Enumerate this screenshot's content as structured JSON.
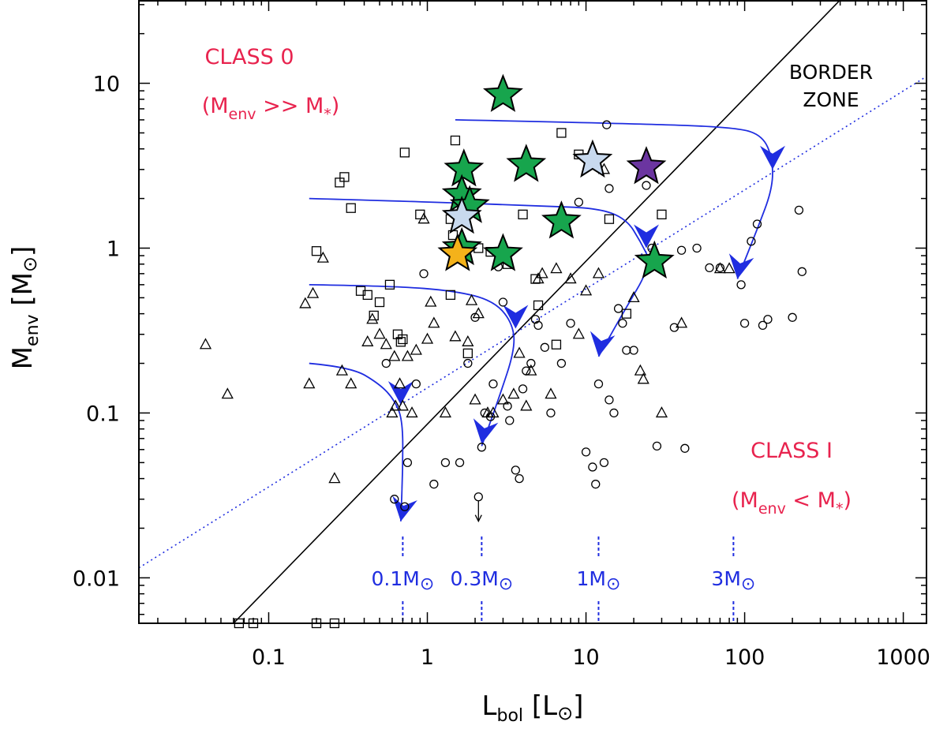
{
  "chart_data": {
    "type": "scatter",
    "xscale": "log",
    "yscale": "log",
    "xlim": [
      0.0152,
      1400
    ],
    "ylim": [
      0.0053,
      32
    ],
    "xlabel": {
      "main": "L",
      "sub": "bol",
      "unit": "L",
      "unit_symbol": "⊙"
    },
    "ylabel": {
      "main": "M",
      "sub": "env",
      "unit": "M",
      "unit_symbol": "⊙"
    },
    "xticks": [
      {
        "value": 0.1,
        "label": "0.1"
      },
      {
        "value": 1,
        "label": "1"
      },
      {
        "value": 10,
        "label": "10"
      },
      {
        "value": 100,
        "label": "100"
      },
      {
        "value": 1000,
        "label": "1000"
      }
    ],
    "yticks": [
      {
        "value": 0.01,
        "label": "0.01"
      },
      {
        "value": 0.1,
        "label": "0.1"
      },
      {
        "value": 1,
        "label": "1"
      },
      {
        "value": 10,
        "label": "10"
      }
    ],
    "annotations": {
      "class0_title": "CLASS 0",
      "class0_relation": {
        "open": "(M",
        "sub1": "env",
        "op": " >> M",
        "sub2": "*",
        "close": ")"
      },
      "class1_title": "CLASS I",
      "class1_relation": {
        "open": "(M",
        "sub1": "env",
        "op": " < M",
        "sub2": "*",
        "close": ")"
      },
      "border_zone": [
        "BORDER",
        "ZONE"
      ],
      "mass_markers": [
        {
          "value": "0.1M",
          "symbol": "⊙",
          "x": 0.7
        },
        {
          "value": "0.3M",
          "symbol": "⊙",
          "x": 2.2
        },
        {
          "value": "1M",
          "symbol": "⊙",
          "x": 12
        },
        {
          "value": "3M",
          "symbol": "⊙",
          "x": 85
        }
      ]
    },
    "lines": [
      {
        "name": "class-border-solid",
        "style": "solid",
        "color": "#000000",
        "points": [
          [
            0.06,
            0.0053
          ],
          [
            400,
            32
          ]
        ]
      },
      {
        "name": "class-border-dotted",
        "style": "dotted",
        "color": "#1f2de0",
        "points": [
          [
            0.0152,
            0.0115
          ],
          [
            1400,
            11
          ]
        ]
      }
    ],
    "tracks": [
      {
        "name": "track-0.1",
        "color": "#1f2de0",
        "points": [
          [
            0.18,
            0.2
          ],
          [
            0.33,
            0.19
          ],
          [
            0.5,
            0.15
          ],
          [
            0.62,
            0.12
          ],
          [
            0.7,
            0.09
          ],
          [
            0.7,
            0.045
          ],
          [
            0.68,
            0.022
          ]
        ],
        "arrows": [
          [
            0.68,
            0.112
          ],
          [
            0.68,
            0.022
          ]
        ]
      },
      {
        "name": "track-0.3",
        "color": "#1f2de0",
        "points": [
          [
            0.18,
            0.6
          ],
          [
            0.6,
            0.59
          ],
          [
            1.5,
            0.55
          ],
          [
            2.6,
            0.48
          ],
          [
            3.4,
            0.36
          ],
          [
            3.6,
            0.25
          ],
          [
            2.8,
            0.12
          ],
          [
            2.2,
            0.063
          ]
        ],
        "arrows": [
          [
            3.6,
            0.325
          ],
          [
            2.2,
            0.065
          ]
        ]
      },
      {
        "name": "track-1",
        "color": "#1f2de0",
        "points": [
          [
            0.18,
            2.0
          ],
          [
            1.2,
            1.9
          ],
          [
            5,
            1.8
          ],
          [
            12,
            1.75
          ],
          [
            18,
            1.5
          ],
          [
            22,
            1.1
          ],
          [
            26,
            0.8
          ],
          [
            17,
            0.4
          ],
          [
            12,
            0.22
          ]
        ],
        "arrows": [
          [
            24,
            1.0
          ],
          [
            12,
            0.22
          ]
        ]
      },
      {
        "name": "track-3",
        "color": "#1f2de0",
        "points": [
          [
            1.5,
            6.0
          ],
          [
            20,
            5.7
          ],
          [
            90,
            5.4
          ],
          [
            130,
            4.8
          ],
          [
            150,
            3.5
          ],
          [
            150,
            2.3
          ],
          [
            120,
            1.3
          ],
          [
            90,
            0.65
          ]
        ],
        "arrows": [
          [
            150,
            3.0
          ],
          [
            90,
            0.65
          ]
        ]
      }
    ],
    "series": [
      {
        "name": "squares",
        "marker": "open-square",
        "points": [
          [
            0.2,
            0.96
          ],
          [
            0.28,
            2.5
          ],
          [
            0.3,
            2.7
          ],
          [
            0.33,
            1.75
          ],
          [
            0.38,
            0.55
          ],
          [
            0.42,
            0.52
          ],
          [
            0.46,
            0.39
          ],
          [
            0.5,
            0.47
          ],
          [
            0.58,
            0.6
          ],
          [
            0.65,
            0.3
          ],
          [
            0.68,
            0.27
          ],
          [
            0.7,
            0.28
          ],
          [
            0.72,
            3.8
          ],
          [
            0.9,
            1.6
          ],
          [
            1.4,
            0.52
          ],
          [
            1.4,
            1.5
          ],
          [
            1.45,
            1.2
          ],
          [
            1.5,
            4.5
          ],
          [
            1.8,
            0.23
          ],
          [
            2.1,
            1.0
          ],
          [
            2.5,
            0.95
          ],
          [
            3.2,
            0.8
          ],
          [
            4.0,
            1.6
          ],
          [
            5.0,
            0.45
          ],
          [
            4.8,
            0.65
          ],
          [
            6.5,
            0.26
          ],
          [
            7.0,
            5.0
          ],
          [
            9.0,
            3.7
          ],
          [
            14.0,
            1.5
          ],
          [
            18.0,
            0.4
          ],
          [
            30.0,
            1.6
          ],
          [
            0.065,
            0.0053
          ],
          [
            0.08,
            0.0053
          ],
          [
            0.2,
            0.0053
          ],
          [
            0.26,
            0.0053
          ]
        ]
      },
      {
        "name": "triangles",
        "marker": "open-triangle",
        "points": [
          [
            0.04,
            0.26
          ],
          [
            0.055,
            0.13
          ],
          [
            0.17,
            0.46
          ],
          [
            0.18,
            0.15
          ],
          [
            0.19,
            0.53
          ],
          [
            0.22,
            0.87
          ],
          [
            0.26,
            0.04
          ],
          [
            0.29,
            0.18
          ],
          [
            0.33,
            0.15
          ],
          [
            0.42,
            0.27
          ],
          [
            0.45,
            0.37
          ],
          [
            0.5,
            0.3
          ],
          [
            0.55,
            0.26
          ],
          [
            0.6,
            0.1
          ],
          [
            0.62,
            0.22
          ],
          [
            0.63,
            0.11
          ],
          [
            0.67,
            0.15
          ],
          [
            0.7,
            0.11
          ],
          [
            0.75,
            0.22
          ],
          [
            0.8,
            0.1
          ],
          [
            0.85,
            0.24
          ],
          [
            0.95,
            1.5
          ],
          [
            1.0,
            0.28
          ],
          [
            1.05,
            0.47
          ],
          [
            1.1,
            0.35
          ],
          [
            1.3,
            0.1
          ],
          [
            1.5,
            0.29
          ],
          [
            1.6,
            0.9
          ],
          [
            1.8,
            0.27
          ],
          [
            1.9,
            0.48
          ],
          [
            2.0,
            0.12
          ],
          [
            2.1,
            0.4
          ],
          [
            2.4,
            0.1
          ],
          [
            2.6,
            0.1
          ],
          [
            3.0,
            0.12
          ],
          [
            3.5,
            0.13
          ],
          [
            3.8,
            0.23
          ],
          [
            4.2,
            0.11
          ],
          [
            4.5,
            0.18
          ],
          [
            5.0,
            0.65
          ],
          [
            5.3,
            0.7
          ],
          [
            6.0,
            0.13
          ],
          [
            6.5,
            0.75
          ],
          [
            8.0,
            0.65
          ],
          [
            9.0,
            0.3
          ],
          [
            10.0,
            0.55
          ],
          [
            12.0,
            0.7
          ],
          [
            13.0,
            3.0
          ],
          [
            20.0,
            0.5
          ],
          [
            22.0,
            0.18
          ],
          [
            23.0,
            0.16
          ],
          [
            30.0,
            0.1
          ],
          [
            40.0,
            0.35
          ],
          [
            70.0,
            0.75
          ],
          [
            80.0,
            0.75
          ]
        ]
      },
      {
        "name": "circles",
        "marker": "open-circle",
        "points": [
          [
            0.55,
            0.2
          ],
          [
            0.62,
            0.03
          ],
          [
            0.72,
            0.027
          ],
          [
            0.75,
            0.05
          ],
          [
            0.85,
            0.15
          ],
          [
            0.95,
            0.7
          ],
          [
            1.1,
            0.037
          ],
          [
            1.3,
            0.05
          ],
          [
            1.6,
            0.05
          ],
          [
            1.8,
            0.2
          ],
          [
            2.0,
            0.38
          ],
          [
            2.2,
            0.062
          ],
          [
            2.3,
            0.1
          ],
          [
            2.5,
            0.095
          ],
          [
            2.6,
            0.15
          ],
          [
            2.8,
            0.77
          ],
          [
            3.0,
            0.47
          ],
          [
            3.2,
            0.11
          ],
          [
            3.3,
            0.09
          ],
          [
            3.6,
            0.045
          ],
          [
            3.8,
            0.04
          ],
          [
            4.0,
            0.14
          ],
          [
            4.2,
            0.18
          ],
          [
            4.5,
            0.2
          ],
          [
            4.8,
            0.37
          ],
          [
            5.0,
            0.34
          ],
          [
            5.5,
            0.25
          ],
          [
            6.0,
            0.1
          ],
          [
            7.0,
            0.2
          ],
          [
            8.0,
            0.35
          ],
          [
            9.0,
            1.9
          ],
          [
            10.0,
            0.058
          ],
          [
            11.0,
            0.047
          ],
          [
            11.5,
            0.037
          ],
          [
            12.0,
            0.15
          ],
          [
            13.0,
            0.05
          ],
          [
            14.0,
            0.12
          ],
          [
            15.0,
            0.1
          ],
          [
            16.0,
            0.43
          ],
          [
            17.0,
            0.35
          ],
          [
            18.0,
            0.24
          ],
          [
            20.0,
            0.24
          ],
          [
            24.0,
            2.4
          ],
          [
            26.0,
            1.0
          ],
          [
            28.0,
            0.063
          ],
          [
            36.0,
            0.33
          ],
          [
            40.0,
            0.97
          ],
          [
            42.0,
            0.061
          ],
          [
            50.0,
            1.0
          ],
          [
            60.0,
            0.76
          ],
          [
            70.0,
            0.76
          ],
          [
            95.0,
            0.6
          ],
          [
            100.0,
            0.35
          ],
          [
            110.0,
            1.1
          ],
          [
            120.0,
            1.4
          ],
          [
            130.0,
            0.34
          ],
          [
            140.0,
            0.37
          ],
          [
            200.0,
            0.38
          ],
          [
            220.0,
            1.7
          ],
          [
            230.0,
            0.72
          ],
          [
            14.0,
            2.3
          ],
          [
            13.5,
            5.6
          ]
        ]
      },
      {
        "name": "upper-limit",
        "marker": "open-circle-down-arrow",
        "points": [
          [
            2.1,
            0.031
          ]
        ]
      },
      {
        "name": "green-stars",
        "marker": "star",
        "fill": "#17a54d",
        "points": [
          [
            3.0,
            8.5
          ],
          [
            1.7,
            3.0
          ],
          [
            4.2,
            3.2
          ],
          [
            1.65,
            2.1
          ],
          [
            1.85,
            1.8
          ],
          [
            7.0,
            1.45
          ],
          [
            1.65,
            1.0
          ],
          [
            3.0,
            0.92
          ],
          [
            27.0,
            0.83
          ]
        ]
      },
      {
        "name": "light-blue-stars",
        "marker": "star",
        "fill": "#c8d9ee",
        "points": [
          [
            11.0,
            3.4
          ],
          [
            1.65,
            1.55
          ]
        ]
      },
      {
        "name": "purple-star",
        "marker": "star",
        "fill": "#6b35a0",
        "points": [
          [
            24.0,
            3.1
          ]
        ]
      },
      {
        "name": "yellow-star",
        "marker": "star",
        "fill": "#f4b21a",
        "points": [
          [
            1.55,
            0.92
          ]
        ]
      }
    ]
  }
}
